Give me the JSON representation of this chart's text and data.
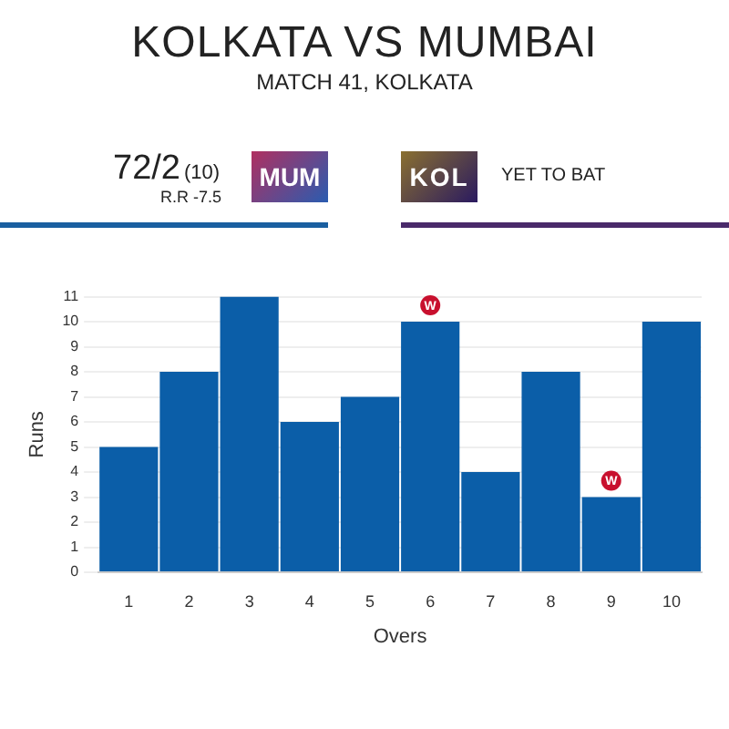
{
  "chart_data": {
    "type": "bar",
    "title": "KOLKATA VS MUMBAI",
    "subtitle": "MATCH 41, KOLKATA",
    "xlabel": "Overs",
    "ylabel": "Runs",
    "categories": [
      "1",
      "2",
      "3",
      "4",
      "5",
      "6",
      "7",
      "8",
      "9",
      "10"
    ],
    "values": [
      5,
      8,
      11,
      6,
      7,
      10,
      4,
      8,
      3,
      10
    ],
    "color": "#0b5ea8",
    "ylim": [
      0,
      11
    ],
    "yticks": [
      0,
      1,
      2,
      3,
      4,
      5,
      6,
      7,
      8,
      9,
      10,
      11
    ],
    "grid": "y",
    "annotations": [
      "72/2",
      "(10)",
      "R.R -7.5",
      "MUM",
      "KOL",
      "YET TO BAT",
      {
        "text": "W",
        "x": "6",
        "y": 10
      },
      {
        "text": "W",
        "x": "9",
        "y": 3
      }
    ]
  }
}
